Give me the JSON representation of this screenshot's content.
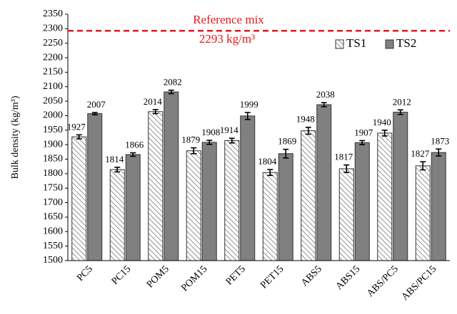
{
  "chart_data": {
    "type": "bar",
    "y_label": "Bulk density (kg/m³)",
    "categories": [
      "PC5",
      "PC15",
      "POM5",
      "POM15",
      "PET5",
      "PET15",
      "ABS5",
      "ABS15",
      "ABS/PC5",
      "ABS/PC15"
    ],
    "series": [
      {
        "name": "TS1",
        "color": "#ffffff",
        "pattern": "hatch",
        "values": [
          1927,
          1814,
          2014,
          1879,
          1914,
          1804,
          1948,
          1817,
          1940,
          1827
        ],
        "errors": [
          7,
          8,
          7,
          10,
          8,
          10,
          12,
          13,
          10,
          14
        ]
      },
      {
        "name": "TS2",
        "color": "#808080",
        "values": [
          2007,
          1866,
          2082,
          1908,
          1999,
          1869,
          2038,
          1907,
          2012,
          1873
        ],
        "errors": [
          4,
          6,
          6,
          7,
          12,
          15,
          7,
          7,
          8,
          12
        ]
      }
    ],
    "reference": {
      "label": "Reference mix",
      "value": 2293,
      "value_label": "2293 kg/m³",
      "color": "#e8171b"
    },
    "ylim": [
      1500,
      2350
    ],
    "yticks": [
      1500,
      1550,
      1600,
      1650,
      1700,
      1750,
      1800,
      1850,
      1900,
      1950,
      2000,
      2050,
      2100,
      2150,
      2200,
      2250,
      2300,
      2350
    ],
    "legend": "upper right",
    "grid": false
  }
}
